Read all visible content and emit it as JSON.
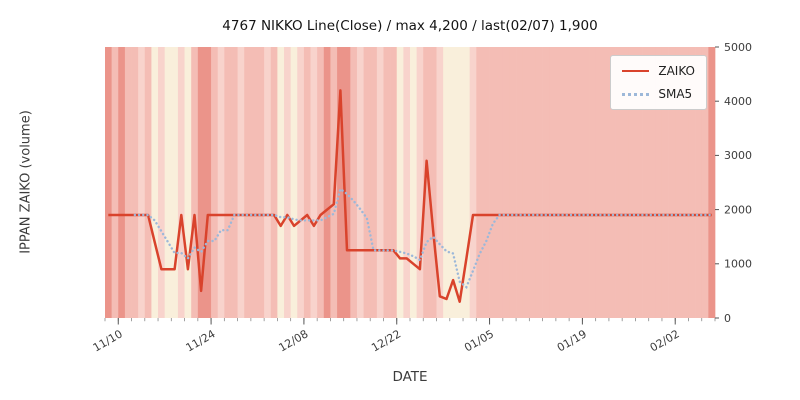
{
  "chart_data": {
    "type": "line",
    "title": "4767 NIKKO Line(Close) / max 4,200 / last(02/07) 1,900",
    "xlabel": "DATE",
    "ylabel": "IPPAN ZAIKO (volume)",
    "ylim": [
      0,
      5000
    ],
    "y_ticks": [
      0,
      1000,
      2000,
      3000,
      4000,
      5000
    ],
    "x_domain_days": 92,
    "x_tick_days": [
      2,
      16,
      30,
      44,
      58,
      72,
      86
    ],
    "x_tick_labels": [
      "11/10",
      "11/24",
      "12/08",
      "12/22",
      "01/05",
      "01/19",
      "02/02"
    ],
    "max_value": 4200,
    "last_date": "02/07",
    "last_value": 1900,
    "legend_position": "upper right",
    "grid": false,
    "dates": [
      "11/08",
      "11/09",
      "11/10",
      "11/11",
      "11/12",
      "11/13",
      "11/14",
      "11/15",
      "11/16",
      "11/17",
      "11/18",
      "11/19",
      "11/20",
      "11/21",
      "11/22",
      "11/23",
      "11/24",
      "11/25",
      "11/26",
      "11/27",
      "11/28",
      "11/29",
      "11/30",
      "12/01",
      "12/02",
      "12/03",
      "12/04",
      "12/05",
      "12/06",
      "12/07",
      "12/08",
      "12/09",
      "12/10",
      "12/11",
      "12/12",
      "12/13",
      "12/14",
      "12/15",
      "12/16",
      "12/17",
      "12/18",
      "12/19",
      "12/20",
      "12/21",
      "12/22",
      "12/23",
      "12/24",
      "12/25",
      "12/26",
      "12/27",
      "12/28",
      "12/29",
      "12/30",
      "12/31",
      "01/01",
      "01/02",
      "01/03",
      "01/04",
      "01/05",
      "01/06",
      "01/07",
      "01/08",
      "01/09",
      "01/10",
      "01/11",
      "01/12",
      "01/13",
      "01/14",
      "01/15",
      "01/16",
      "01/17",
      "01/18",
      "01/19",
      "01/20",
      "01/21",
      "01/22",
      "01/23",
      "01/24",
      "01/25",
      "01/26",
      "01/27",
      "01/28",
      "01/29",
      "01/30",
      "01/31",
      "02/01",
      "02/02",
      "02/03",
      "02/04",
      "02/05",
      "02/06",
      "02/07"
    ],
    "series": [
      {
        "name": "ZAIKO",
        "color": "#d9432c",
        "style": "solid",
        "values": [
          1900,
          1900,
          1900,
          1900,
          1900,
          1900,
          1900,
          1400,
          900,
          900,
          900,
          1900,
          900,
          1900,
          500,
          1900,
          1900,
          1900,
          1900,
          1900,
          1900,
          1900,
          1900,
          1900,
          1900,
          1900,
          1700,
          1900,
          1700,
          1800,
          1900,
          1700,
          1900,
          2000,
          2100,
          4200,
          1250,
          1250,
          1250,
          1250,
          1250,
          1250,
          1250,
          1250,
          1100,
          1100,
          1000,
          900,
          2900,
          1600,
          400,
          350,
          700,
          300,
          1100,
          1900,
          1900,
          1900,
          1900,
          1900,
          1900,
          1900,
          1900,
          1900,
          1900,
          1900,
          1900,
          1900,
          1900,
          1900,
          1900,
          1900,
          1900,
          1900,
          1900,
          1900,
          1900,
          1900,
          1900,
          1900,
          1900,
          1900,
          1900,
          1900,
          1900,
          1900,
          1900,
          1900,
          1900,
          1900,
          1900,
          1900
        ]
      },
      {
        "name": "SMA5",
        "color": "#9db8d9",
        "style": "dotted",
        "values": [
          null,
          null,
          null,
          null,
          1900,
          1900,
          1900,
          1800,
          1600,
          1400,
          1200,
          1200,
          1100,
          1300,
          1220,
          1420,
          1420,
          1620,
          1620,
          1900,
          1900,
          1900,
          1900,
          1900,
          1900,
          1900,
          1860,
          1860,
          1820,
          1800,
          1800,
          1800,
          1800,
          1860,
          1920,
          2380,
          2290,
          2160,
          2010,
          1840,
          1250,
          1250,
          1250,
          1250,
          1220,
          1190,
          1140,
          1070,
          1400,
          1500,
          1360,
          1230,
          1190,
          670,
          570,
          870,
          1180,
          1420,
          1740,
          1900,
          1900,
          1900,
          1900,
          1900,
          1900,
          1900,
          1900,
          1900,
          1900,
          1900,
          1900,
          1900,
          1900,
          1900,
          1900,
          1900,
          1900,
          1900,
          1900,
          1900,
          1900,
          1900,
          1900,
          1900,
          1900,
          1900,
          1900,
          1900,
          1900,
          1900,
          1900,
          1900
        ]
      }
    ],
    "band_palette": {
      "d": "#eb948a",
      "m": "#f4bdb5",
      "l": "#f8d3cc",
      "c": "#f9efdb"
    },
    "bands": [
      "d",
      "m",
      "d",
      "m",
      "m",
      "l",
      "m",
      "c",
      "l",
      "c",
      "c",
      "l",
      "c",
      "m",
      "d",
      "d",
      "m",
      "l",
      "m",
      "m",
      "l",
      "m",
      "m",
      "m",
      "l",
      "m",
      "c",
      "l",
      "c",
      "l",
      "m",
      "l",
      "m",
      "d",
      "m",
      "d",
      "d",
      "m",
      "l",
      "m",
      "m",
      "l",
      "m",
      "m",
      "c",
      "l",
      "c",
      "l",
      "m",
      "m",
      "l",
      "c",
      "c",
      "c",
      "c",
      "l",
      "m",
      "m",
      "m",
      "m",
      "m",
      "m",
      "m",
      "m",
      "m",
      "m",
      "m",
      "m",
      "m",
      "m",
      "m",
      "m",
      "m",
      "m",
      "m",
      "m",
      "m",
      "m",
      "m",
      "m",
      "m",
      "m",
      "m",
      "m",
      "m",
      "m",
      "m",
      "m",
      "m",
      "m",
      "m",
      "d"
    ]
  }
}
